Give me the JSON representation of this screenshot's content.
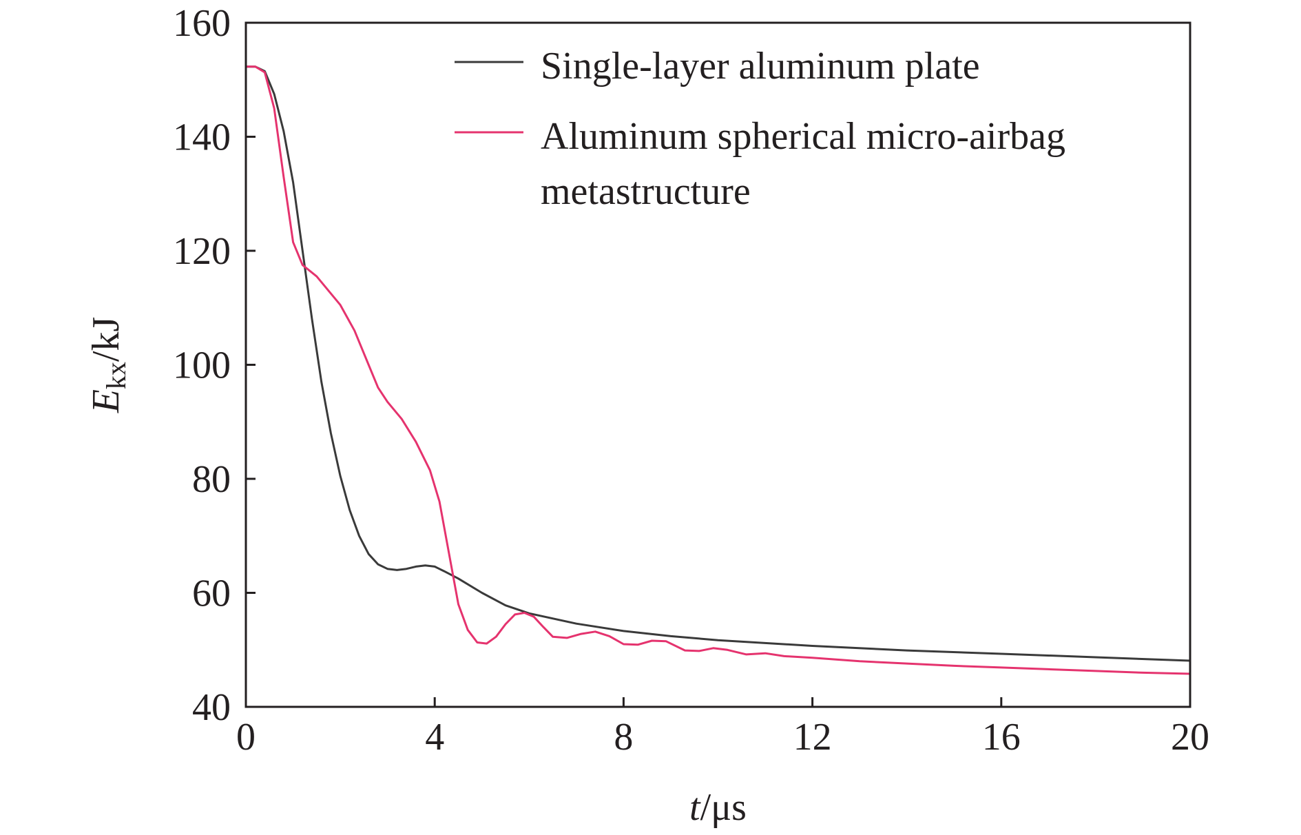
{
  "chart_data": {
    "type": "line",
    "xlabel": {
      "var": "t",
      "unit": "/μs"
    },
    "ylabel": {
      "var": "E",
      "sub": "kx",
      "unit": "/kJ"
    },
    "xlim": [
      0,
      20
    ],
    "ylim": [
      40,
      160
    ],
    "xticks": [
      "0",
      "4",
      "8",
      "12",
      "16",
      "20"
    ],
    "yticks": [
      "40",
      "60",
      "80",
      "100",
      "120",
      "140",
      "160"
    ],
    "grid": false,
    "legend_position": "top-right",
    "series": [
      {
        "name": "Single-layer aluminum plate",
        "color": "#3a3a3a",
        "points": [
          [
            0,
            152.3
          ],
          [
            0.2,
            152.3
          ],
          [
            0.4,
            151.5
          ],
          [
            0.6,
            147.5
          ],
          [
            0.8,
            141
          ],
          [
            1.0,
            132
          ],
          [
            1.2,
            120
          ],
          [
            1.4,
            108
          ],
          [
            1.6,
            97
          ],
          [
            1.8,
            88
          ],
          [
            2.0,
            80.5
          ],
          [
            2.2,
            74.5
          ],
          [
            2.4,
            70
          ],
          [
            2.6,
            66.8
          ],
          [
            2.8,
            65
          ],
          [
            3.0,
            64.2
          ],
          [
            3.2,
            64.0
          ],
          [
            3.4,
            64.2
          ],
          [
            3.6,
            64.6
          ],
          [
            3.8,
            64.8
          ],
          [
            4.0,
            64.6
          ],
          [
            4.2,
            63.8
          ],
          [
            4.5,
            62.5
          ],
          [
            5.0,
            60
          ],
          [
            5.5,
            57.8
          ],
          [
            6.0,
            56.4
          ],
          [
            7.0,
            54.6
          ],
          [
            8.0,
            53.3
          ],
          [
            9.0,
            52.4
          ],
          [
            10.0,
            51.7
          ],
          [
            12.0,
            50.7
          ],
          [
            14.0,
            49.9
          ],
          [
            16.0,
            49.3
          ],
          [
            18.0,
            48.7
          ],
          [
            20.0,
            48.1
          ]
        ]
      },
      {
        "name": "Aluminum spherical micro-airbag metastructure",
        "color": "#e5336e",
        "points": [
          [
            0,
            152.3
          ],
          [
            0.2,
            152.3
          ],
          [
            0.4,
            151.3
          ],
          [
            0.6,
            145
          ],
          [
            0.8,
            133
          ],
          [
            1.0,
            121.5
          ],
          [
            1.2,
            117.5
          ],
          [
            1.5,
            115.5
          ],
          [
            1.8,
            112.5
          ],
          [
            2.0,
            110.5
          ],
          [
            2.3,
            106
          ],
          [
            2.6,
            100
          ],
          [
            2.8,
            96
          ],
          [
            3.0,
            93.5
          ],
          [
            3.3,
            90.5
          ],
          [
            3.6,
            86.5
          ],
          [
            3.9,
            81.5
          ],
          [
            4.1,
            76
          ],
          [
            4.3,
            67
          ],
          [
            4.5,
            58
          ],
          [
            4.7,
            53.5
          ],
          [
            4.9,
            51.3
          ],
          [
            5.1,
            51.1
          ],
          [
            5.3,
            52.3
          ],
          [
            5.5,
            54.5
          ],
          [
            5.7,
            56.2
          ],
          [
            5.9,
            56.5
          ],
          [
            6.1,
            55.8
          ],
          [
            6.3,
            54
          ],
          [
            6.5,
            52.3
          ],
          [
            6.8,
            52.1
          ],
          [
            7.1,
            52.8
          ],
          [
            7.4,
            53.2
          ],
          [
            7.7,
            52.4
          ],
          [
            8.0,
            51.0
          ],
          [
            8.3,
            50.9
          ],
          [
            8.6,
            51.6
          ],
          [
            8.9,
            51.5
          ],
          [
            9.3,
            49.9
          ],
          [
            9.6,
            49.8
          ],
          [
            9.9,
            50.3
          ],
          [
            10.2,
            50.0
          ],
          [
            10.6,
            49.2
          ],
          [
            11.0,
            49.4
          ],
          [
            11.4,
            48.9
          ],
          [
            12.0,
            48.6
          ],
          [
            13.0,
            48.0
          ],
          [
            14.0,
            47.6
          ],
          [
            15.0,
            47.2
          ],
          [
            16.0,
            46.9
          ],
          [
            17.0,
            46.6
          ],
          [
            18.0,
            46.3
          ],
          [
            19.0,
            46.0
          ],
          [
            20.0,
            45.8
          ]
        ]
      }
    ]
  }
}
